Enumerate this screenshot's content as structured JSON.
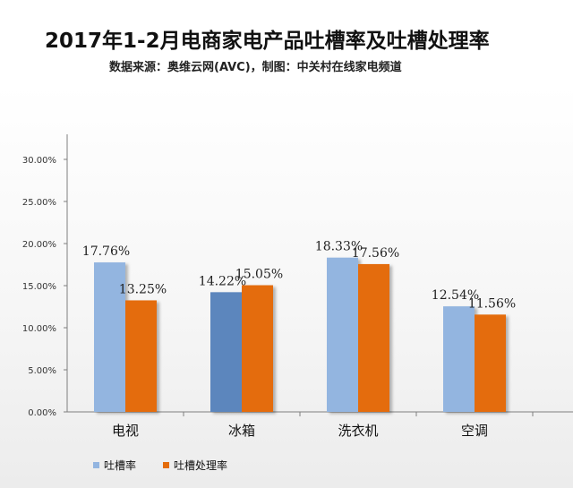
{
  "chart_data": {
    "type": "bar",
    "title": "2017年1-2月电商家电产品吐槽率及吐槽处理率",
    "subtitle": "数据来源：奥维云网(AVC)，制图：中关村在线家电频道",
    "categories": [
      "电视",
      "冰箱",
      "洗衣机",
      "空调"
    ],
    "series": [
      {
        "name": "吐槽率",
        "values": [
          17.76,
          14.22,
          18.33,
          12.54
        ],
        "labels": [
          "17.76%",
          "14.22%",
          "18.33%",
          "12.54%"
        ],
        "color": "#93b5e0",
        "highlight": {
          "index": 1,
          "color": "#5b86bd"
        }
      },
      {
        "name": "吐槽处理率",
        "values": [
          13.25,
          15.05,
          17.56,
          11.56
        ],
        "labels": [
          "13.25%",
          "15.05%",
          "17.56%",
          "11.56%"
        ],
        "color": "#e46c0a"
      }
    ],
    "yticks": [
      "0.00%",
      "5.00%",
      "10.00%",
      "15.00%",
      "20.00%",
      "25.00%",
      "30.00%"
    ],
    "ylim": [
      0,
      30
    ],
    "grid": false,
    "legend_position": "bottom-left"
  }
}
